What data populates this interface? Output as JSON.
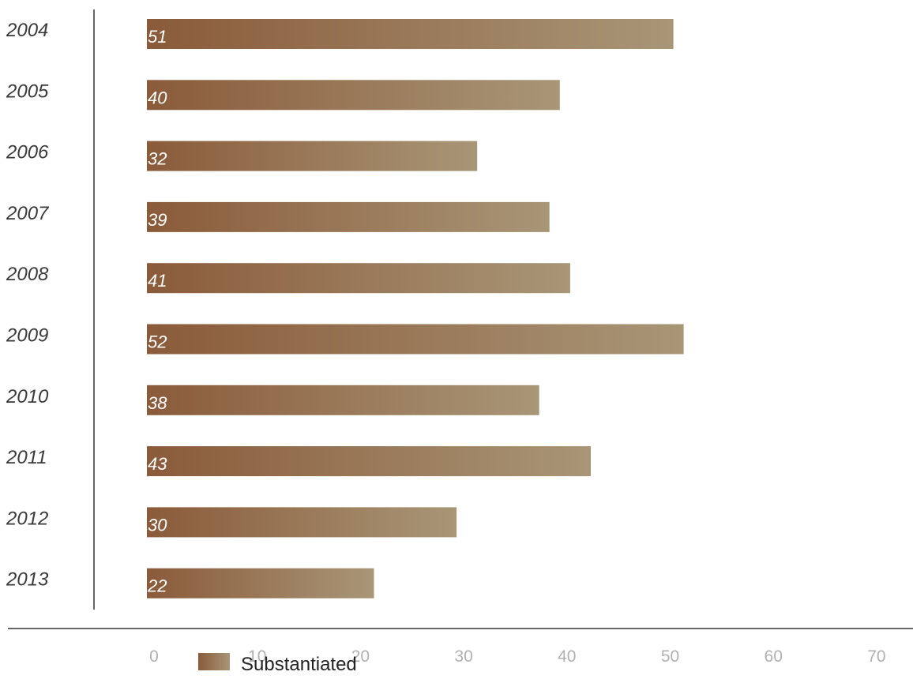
{
  "chart_data": {
    "type": "bar",
    "orientation": "horizontal",
    "categories": [
      "2004",
      "2005",
      "2006",
      "2007",
      "2008",
      "2009",
      "2010",
      "2011",
      "2012",
      "2013"
    ],
    "series": [
      {
        "name": "Substantiated",
        "values": [
          51,
          40,
          32,
          39,
          41,
          52,
          38,
          43,
          30,
          22
        ]
      }
    ],
    "value_labels": [
      "51",
      "40",
      "32",
      "39",
      "41",
      "52",
      "38",
      "43",
      "30",
      "22"
    ],
    "xlim": [
      0,
      70
    ],
    "xticks": [
      0,
      10,
      20,
      30,
      40,
      50,
      60,
      70
    ],
    "xtick_labels": [
      "0",
      "10",
      "20",
      "30",
      "40",
      "50",
      "60",
      "70"
    ],
    "title": "",
    "xlabel": "",
    "ylabel": "",
    "grid": false,
    "legend": {
      "position": "bottom-left",
      "entries": [
        "Substantiated"
      ]
    },
    "colors": {
      "bar_start": "#8a5b3a",
      "bar_end": "#a89677",
      "axis": "#333333",
      "tick_text": "#b0b0b0",
      "category_text": "#3a3a3a",
      "value_text": "#ffffff"
    }
  }
}
